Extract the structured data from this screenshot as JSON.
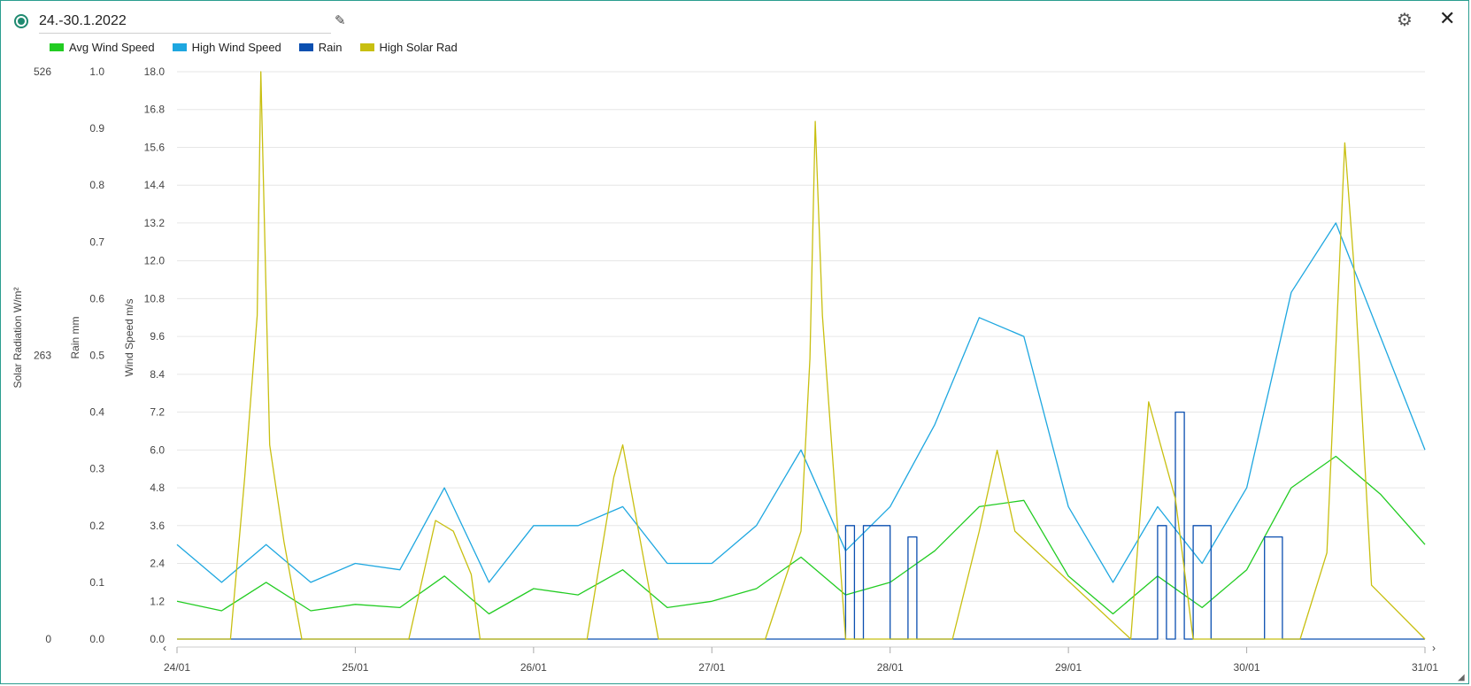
{
  "header": {
    "title": "24.-30.1.2022",
    "edit_icon": "pencil-icon",
    "settings_icon": "gear-icon",
    "close_icon": "close-icon"
  },
  "colors": {
    "avg_wind": "#22cc22",
    "high_wind": "#1ea7e0",
    "rain": "#0b4fb0",
    "solar": "#c8bf10",
    "accent": "#1f8a70"
  },
  "chart_data": {
    "type": "line",
    "title": "",
    "x_ticks": [
      "24/01",
      "25/01",
      "26/01",
      "27/01",
      "28/01",
      "29/01",
      "30/01",
      "31/01"
    ],
    "xlim": [
      "24/01",
      "31/01"
    ],
    "grid": true,
    "legend": "top-left",
    "axes": [
      {
        "id": "solar",
        "label": "Solar Radiation W/m²",
        "ticks": [
          "526",
          "263",
          "0"
        ],
        "ylim": [
          0,
          526
        ]
      },
      {
        "id": "rain",
        "label": "Rain mm",
        "ticks": [
          "1.0",
          "0.9",
          "0.8",
          "0.7",
          "0.6",
          "0.5",
          "0.4",
          "0.3",
          "0.2",
          "0.1",
          "0.0"
        ],
        "ylim": [
          0,
          1.0
        ]
      },
      {
        "id": "wind",
        "label": "Wind Speed m/s",
        "ticks": [
          "18.0",
          "16.8",
          "15.6",
          "14.4",
          "13.2",
          "12.0",
          "10.8",
          "9.6",
          "8.4",
          "7.2",
          "6.0",
          "4.8",
          "3.6",
          "2.4",
          "1.2",
          "0.0"
        ],
        "ylim": [
          0,
          18
        ]
      }
    ],
    "series": [
      {
        "name": "Avg Wind Speed",
        "axis": "wind",
        "x": [
          0,
          0.25,
          0.5,
          0.75,
          1,
          1.25,
          1.5,
          1.75,
          2,
          2.25,
          2.5,
          2.75,
          3,
          3.25,
          3.5,
          3.75,
          4,
          4.25,
          4.5,
          4.75,
          5,
          5.25,
          5.5,
          5.75,
          6,
          6.25,
          6.5,
          6.75,
          7
        ],
        "values": [
          1.2,
          0.9,
          1.8,
          0.9,
          1.1,
          1.0,
          2.0,
          0.8,
          1.6,
          1.4,
          2.2,
          1.0,
          1.2,
          1.6,
          2.6,
          1.4,
          1.8,
          2.8,
          4.2,
          4.4,
          2.0,
          0.8,
          2.0,
          1.0,
          2.2,
          4.8,
          5.8,
          4.6,
          3.0
        ]
      },
      {
        "name": "High Wind Speed",
        "axis": "wind",
        "x": [
          0,
          0.25,
          0.5,
          0.75,
          1,
          1.25,
          1.5,
          1.75,
          2,
          2.25,
          2.5,
          2.75,
          3,
          3.25,
          3.5,
          3.75,
          4,
          4.25,
          4.5,
          4.75,
          5,
          5.25,
          5.5,
          5.75,
          6,
          6.25,
          6.5,
          6.75,
          7
        ],
        "values": [
          3.0,
          1.8,
          3.0,
          1.8,
          2.4,
          2.2,
          4.8,
          1.8,
          3.6,
          3.6,
          4.2,
          2.4,
          2.4,
          3.6,
          6.0,
          2.8,
          4.2,
          6.8,
          10.2,
          9.6,
          4.2,
          1.8,
          4.2,
          2.4,
          4.8,
          11.0,
          13.2,
          9.6,
          6.0
        ]
      },
      {
        "name": "Rain",
        "axis": "rain",
        "x": [
          0,
          2.0,
          3.7,
          3.75,
          3.8,
          3.85,
          4.0,
          4.1,
          4.15,
          5.3,
          5.5,
          5.55,
          5.6,
          5.65,
          5.7,
          5.8,
          5.9,
          6.1,
          6.2,
          7.0
        ],
        "values": [
          0,
          0,
          0,
          0.2,
          0,
          0.2,
          0,
          0.18,
          0,
          0,
          0.2,
          0,
          0.4,
          0,
          0.2,
          0,
          0,
          0.18,
          0,
          0
        ]
      },
      {
        "name": "High Solar Rad",
        "axis": "solar",
        "x": [
          0,
          0.3,
          0.38,
          0.45,
          0.47,
          0.52,
          0.6,
          0.7,
          1.3,
          1.45,
          1.55,
          1.65,
          1.7,
          2.3,
          2.45,
          2.5,
          2.6,
          2.7,
          3.3,
          3.5,
          3.55,
          3.58,
          3.62,
          3.75,
          4.35,
          4.5,
          4.6,
          4.7,
          5.35,
          5.45,
          5.5,
          5.6,
          5.7,
          6.3,
          6.45,
          6.55,
          6.6,
          6.7,
          7.0
        ],
        "values": [
          0,
          0,
          150,
          300,
          526,
          180,
          90,
          0,
          0,
          110,
          100,
          60,
          0,
          0,
          150,
          180,
          90,
          0,
          0,
          100,
          260,
          480,
          300,
          0,
          0,
          100,
          175,
          100,
          0,
          220,
          190,
          130,
          0,
          0,
          80,
          460,
          350,
          50,
          0
        ]
      }
    ]
  }
}
